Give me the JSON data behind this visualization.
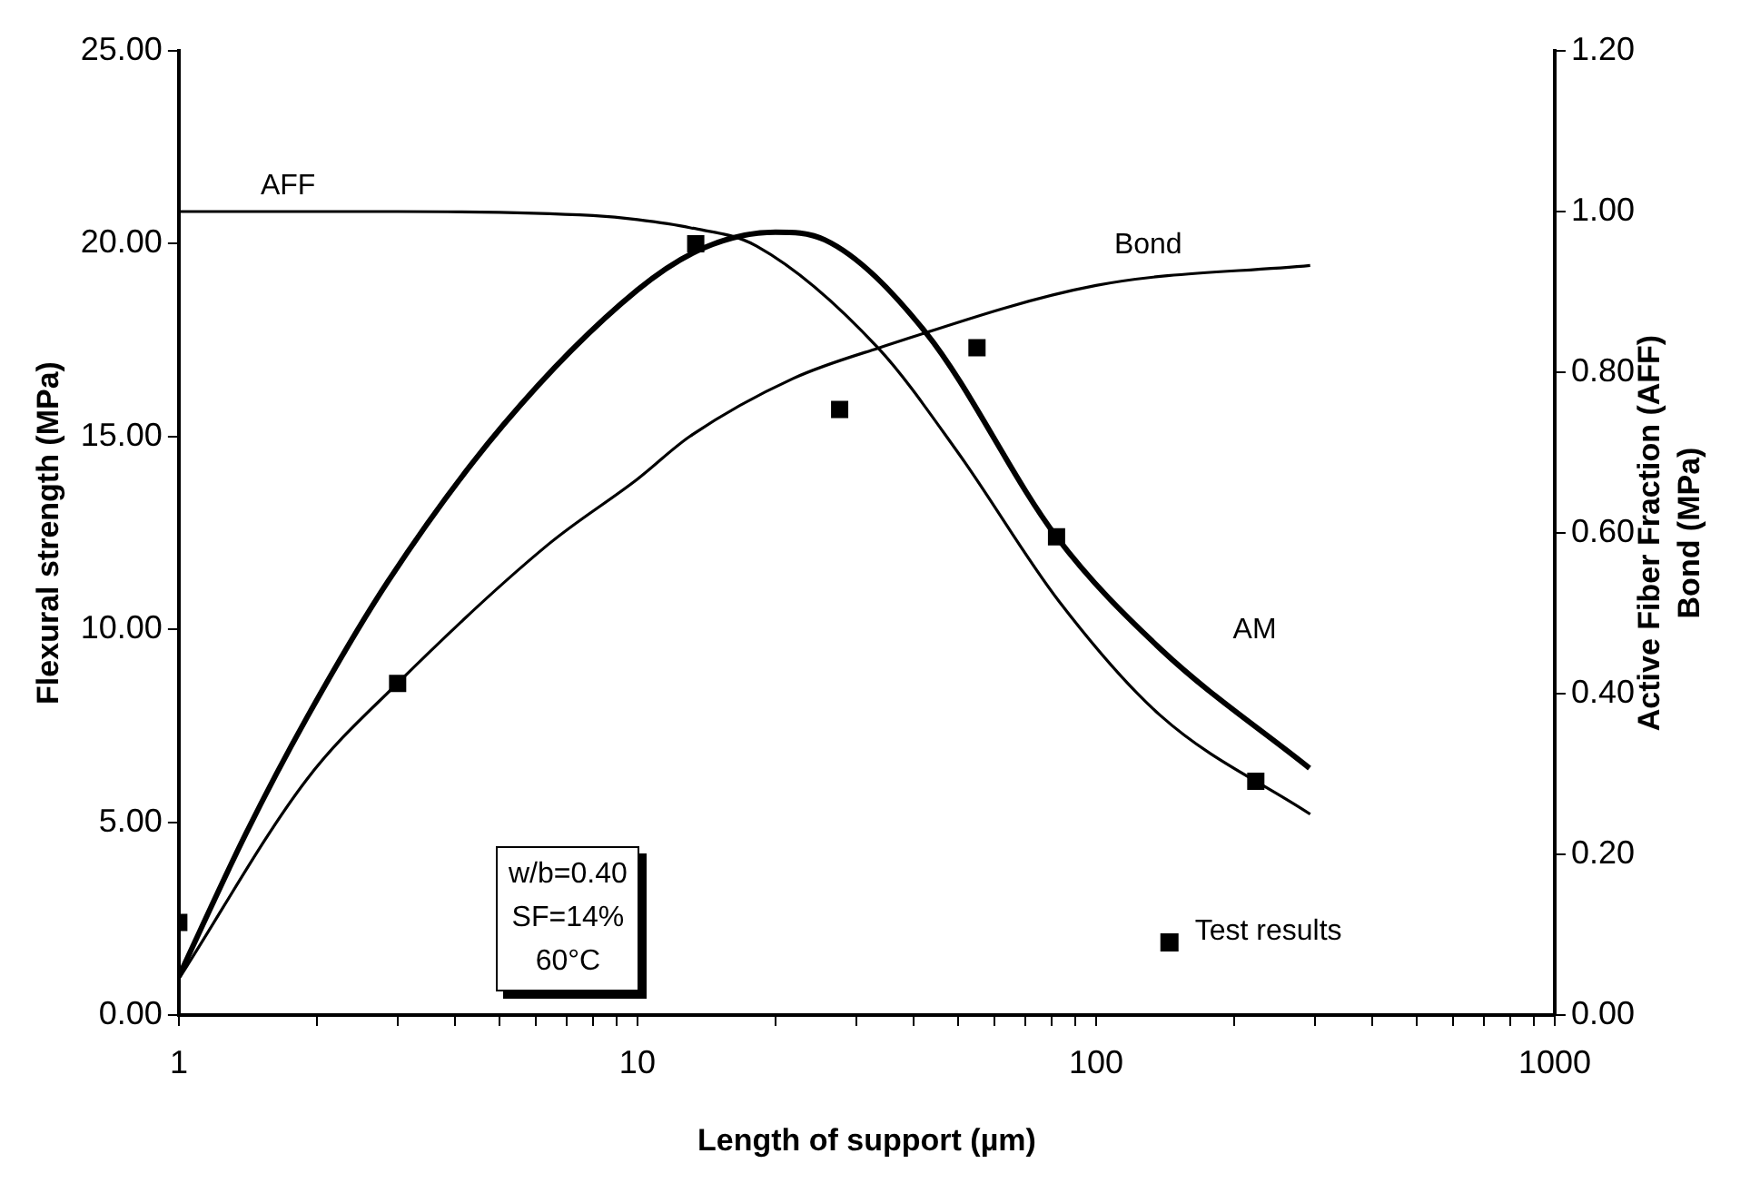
{
  "chart_data": {
    "type": "line",
    "xlabel": "Length of support (µm)",
    "ylabel": "Flexural strength (MPa)",
    "y2label": "Active Fiber Fraction (AFF)\nBond (MPa)",
    "log": "x",
    "grid": false,
    "legend": "bottom right",
    "xlim": [
      1,
      1000
    ],
    "xticks": [
      1,
      {
        "value": 2,
        "label": null
      },
      {
        "value": 3,
        "label": null
      },
      {
        "value": 4,
        "label": null
      },
      {
        "value": 5,
        "label": null
      },
      {
        "value": 6,
        "label": null
      },
      {
        "value": 7,
        "label": null
      },
      {
        "value": 8,
        "label": null
      },
      {
        "value": 9,
        "label": null
      },
      10,
      {
        "value": 20,
        "label": null
      },
      {
        "value": 30,
        "label": null
      },
      {
        "value": 40,
        "label": null
      },
      {
        "value": 50,
        "label": null
      },
      {
        "value": 60,
        "label": null
      },
      {
        "value": 70,
        "label": null
      },
      {
        "value": 80,
        "label": null
      },
      {
        "value": 90,
        "label": null
      },
      100,
      {
        "value": 200,
        "label": null
      },
      {
        "value": 300,
        "label": null
      },
      {
        "value": 400,
        "label": null
      },
      {
        "value": 500,
        "label": null
      },
      {
        "value": 600,
        "label": null
      },
      {
        "value": 700,
        "label": null
      },
      {
        "value": 800,
        "label": null
      },
      {
        "value": 900,
        "label": null
      },
      1000
    ],
    "ylim": [
      0,
      25
    ],
    "yticks": [
      {
        "value": 0,
        "label": "0.00"
      },
      {
        "value": 5,
        "label": "5.00"
      },
      {
        "value": 10,
        "label": "10.00"
      },
      {
        "value": 15,
        "label": "15.00"
      },
      {
        "value": 20,
        "label": "20.00"
      },
      {
        "value": 25,
        "label": "25.00"
      }
    ],
    "y2lim": [
      0,
      1.2
    ],
    "y2ticks": [
      {
        "value": 0,
        "label": "0.00"
      },
      {
        "value": 0.2,
        "label": "0.20"
      },
      {
        "value": 0.4,
        "label": "0.40"
      },
      {
        "value": 0.6,
        "label": "0.60"
      },
      {
        "value": 0.8,
        "label": "0.80"
      },
      {
        "value": 1.0,
        "label": "1.00"
      },
      {
        "value": 1.2,
        "label": "1.20"
      }
    ],
    "annotations": [
      "w/b=0.40\nSF=14%\n60°C"
    ],
    "series": [
      {
        "name": "AM",
        "color": "#000000",
        "marker": "none",
        "line_style": "solid",
        "x": [
          1,
          1.4,
          1.9,
          2.86,
          5.1,
          10,
          14,
          20,
          25.6,
          42.5,
          82,
          138,
          292
        ],
        "values": [
          1.0,
          4.7,
          7.7,
          11.25,
          15.3,
          18.8,
          19.9,
          20.3,
          20.1,
          17.7,
          12.4,
          9.5,
          6.4
        ]
      },
      {
        "name": "AFF",
        "axis": "y2",
        "color": "#000000",
        "marker": "none",
        "line_style": "solid",
        "x": [
          1,
          3,
          8,
          10,
          13,
          18.2,
          33.5,
          50,
          83,
          138,
          293
        ],
        "values": [
          1.0,
          1.0,
          0.995,
          0.99,
          0.98,
          0.957,
          0.83,
          0.7,
          0.515,
          0.373,
          0.25
        ]
      },
      {
        "name": "Bond",
        "axis": "y2",
        "color": "#000000",
        "marker": "none",
        "line_style": "solid",
        "x": [
          1,
          1.9,
          3,
          6.4,
          10,
          13,
          21.8,
          33.5,
          100,
          293
        ],
        "values": [
          0.045,
          0.293,
          0.413,
          0.586,
          0.667,
          0.72,
          0.792,
          0.83,
          0.908,
          0.933
        ]
      },
      {
        "name": "Test results",
        "type": "scatter",
        "color": "#000000",
        "marker": "square",
        "x": [
          1,
          3,
          13.4,
          27.6,
          55,
          82,
          223
        ],
        "values": [
          2.4,
          8.6,
          20.0,
          15.7,
          17.3,
          12.4,
          6.06
        ]
      }
    ]
  }
}
